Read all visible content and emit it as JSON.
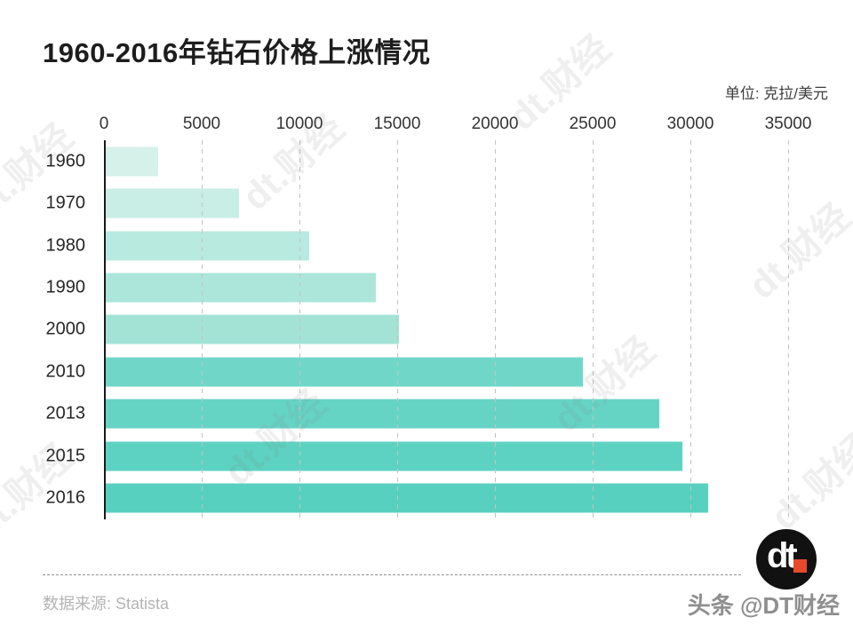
{
  "title": "1960-2016年钻石价格上涨情况",
  "unit_label": "单位: 克拉/美元",
  "watermark": {
    "text": "dt.财经"
  },
  "footer": {
    "source": "数据来源: Statista",
    "logo_text": "dt",
    "social_handle": "头条 @DT财经"
  },
  "colors": {
    "logo_bg": "#111111",
    "logo_dot": "#e8492a",
    "axis": "#1a1a1a",
    "gridline": "#c3c3c3"
  },
  "chart_data": {
    "type": "bar",
    "orientation": "horizontal",
    "title": "1960-2016年钻石价格上涨情况",
    "unit": "克拉/美元",
    "categories": [
      "1960",
      "1970",
      "1980",
      "1990",
      "2000",
      "2010",
      "2013",
      "2015",
      "2016"
    ],
    "values": [
      2700,
      6800,
      10400,
      13800,
      15000,
      24400,
      28300,
      29500,
      30800
    ],
    "x_ticks": [
      0,
      5000,
      10000,
      15000,
      20000,
      25000,
      30000,
      35000
    ],
    "xlim": [
      0,
      35000
    ],
    "grid": "vertical-dashed",
    "legend": "none",
    "source": "Statista",
    "bar_colors": [
      "#d5f1ea",
      "#c8eee5",
      "#b9eadf",
      "#ace6da",
      "#a2e3d6",
      "#70d7c8",
      "#66d4c5",
      "#5ed2c2",
      "#58d0bf"
    ]
  }
}
